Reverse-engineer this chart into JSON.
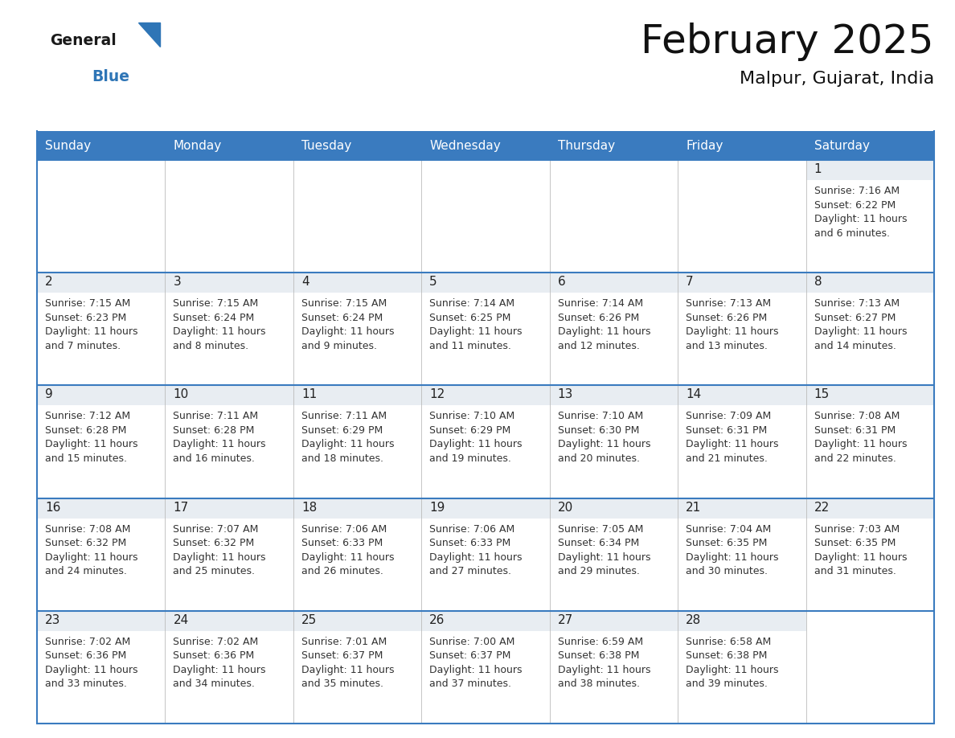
{
  "title": "February 2025",
  "subtitle": "Malpur, Gujarat, India",
  "header_color": "#3a7bbf",
  "header_text_color": "#ffffff",
  "day_num_bg": "#e8edf2",
  "cell_bg_color": "#ffffff",
  "day_number_color": "#222222",
  "text_color": "#333333",
  "border_color": "#3a7bbf",
  "logo_general_color": "#1a1a1a",
  "logo_blue_color": "#2e75b6",
  "logo_triangle_color": "#2e75b6",
  "days_of_week": [
    "Sunday",
    "Monday",
    "Tuesday",
    "Wednesday",
    "Thursday",
    "Friday",
    "Saturday"
  ],
  "calendar": [
    [
      null,
      null,
      null,
      null,
      null,
      null,
      {
        "day": "1",
        "sunrise": "7:16 AM",
        "sunset": "6:22 PM",
        "daylight_line1": "Daylight: 11 hours",
        "daylight_line2": "and 6 minutes."
      }
    ],
    [
      {
        "day": "2",
        "sunrise": "7:15 AM",
        "sunset": "6:23 PM",
        "daylight_line1": "Daylight: 11 hours",
        "daylight_line2": "and 7 minutes."
      },
      {
        "day": "3",
        "sunrise": "7:15 AM",
        "sunset": "6:24 PM",
        "daylight_line1": "Daylight: 11 hours",
        "daylight_line2": "and 8 minutes."
      },
      {
        "day": "4",
        "sunrise": "7:15 AM",
        "sunset": "6:24 PM",
        "daylight_line1": "Daylight: 11 hours",
        "daylight_line2": "and 9 minutes."
      },
      {
        "day": "5",
        "sunrise": "7:14 AM",
        "sunset": "6:25 PM",
        "daylight_line1": "Daylight: 11 hours",
        "daylight_line2": "and 11 minutes."
      },
      {
        "day": "6",
        "sunrise": "7:14 AM",
        "sunset": "6:26 PM",
        "daylight_line1": "Daylight: 11 hours",
        "daylight_line2": "and 12 minutes."
      },
      {
        "day": "7",
        "sunrise": "7:13 AM",
        "sunset": "6:26 PM",
        "daylight_line1": "Daylight: 11 hours",
        "daylight_line2": "and 13 minutes."
      },
      {
        "day": "8",
        "sunrise": "7:13 AM",
        "sunset": "6:27 PM",
        "daylight_line1": "Daylight: 11 hours",
        "daylight_line2": "and 14 minutes."
      }
    ],
    [
      {
        "day": "9",
        "sunrise": "7:12 AM",
        "sunset": "6:28 PM",
        "daylight_line1": "Daylight: 11 hours",
        "daylight_line2": "and 15 minutes."
      },
      {
        "day": "10",
        "sunrise": "7:11 AM",
        "sunset": "6:28 PM",
        "daylight_line1": "Daylight: 11 hours",
        "daylight_line2": "and 16 minutes."
      },
      {
        "day": "11",
        "sunrise": "7:11 AM",
        "sunset": "6:29 PM",
        "daylight_line1": "Daylight: 11 hours",
        "daylight_line2": "and 18 minutes."
      },
      {
        "day": "12",
        "sunrise": "7:10 AM",
        "sunset": "6:29 PM",
        "daylight_line1": "Daylight: 11 hours",
        "daylight_line2": "and 19 minutes."
      },
      {
        "day": "13",
        "sunrise": "7:10 AM",
        "sunset": "6:30 PM",
        "daylight_line1": "Daylight: 11 hours",
        "daylight_line2": "and 20 minutes."
      },
      {
        "day": "14",
        "sunrise": "7:09 AM",
        "sunset": "6:31 PM",
        "daylight_line1": "Daylight: 11 hours",
        "daylight_line2": "and 21 minutes."
      },
      {
        "day": "15",
        "sunrise": "7:08 AM",
        "sunset": "6:31 PM",
        "daylight_line1": "Daylight: 11 hours",
        "daylight_line2": "and 22 minutes."
      }
    ],
    [
      {
        "day": "16",
        "sunrise": "7:08 AM",
        "sunset": "6:32 PM",
        "daylight_line1": "Daylight: 11 hours",
        "daylight_line2": "and 24 minutes."
      },
      {
        "day": "17",
        "sunrise": "7:07 AM",
        "sunset": "6:32 PM",
        "daylight_line1": "Daylight: 11 hours",
        "daylight_line2": "and 25 minutes."
      },
      {
        "day": "18",
        "sunrise": "7:06 AM",
        "sunset": "6:33 PM",
        "daylight_line1": "Daylight: 11 hours",
        "daylight_line2": "and 26 minutes."
      },
      {
        "day": "19",
        "sunrise": "7:06 AM",
        "sunset": "6:33 PM",
        "daylight_line1": "Daylight: 11 hours",
        "daylight_line2": "and 27 minutes."
      },
      {
        "day": "20",
        "sunrise": "7:05 AM",
        "sunset": "6:34 PM",
        "daylight_line1": "Daylight: 11 hours",
        "daylight_line2": "and 29 minutes."
      },
      {
        "day": "21",
        "sunrise": "7:04 AM",
        "sunset": "6:35 PM",
        "daylight_line1": "Daylight: 11 hours",
        "daylight_line2": "and 30 minutes."
      },
      {
        "day": "22",
        "sunrise": "7:03 AM",
        "sunset": "6:35 PM",
        "daylight_line1": "Daylight: 11 hours",
        "daylight_line2": "and 31 minutes."
      }
    ],
    [
      {
        "day": "23",
        "sunrise": "7:02 AM",
        "sunset": "6:36 PM",
        "daylight_line1": "Daylight: 11 hours",
        "daylight_line2": "and 33 minutes."
      },
      {
        "day": "24",
        "sunrise": "7:02 AM",
        "sunset": "6:36 PM",
        "daylight_line1": "Daylight: 11 hours",
        "daylight_line2": "and 34 minutes."
      },
      {
        "day": "25",
        "sunrise": "7:01 AM",
        "sunset": "6:37 PM",
        "daylight_line1": "Daylight: 11 hours",
        "daylight_line2": "and 35 minutes."
      },
      {
        "day": "26",
        "sunrise": "7:00 AM",
        "sunset": "6:37 PM",
        "daylight_line1": "Daylight: 11 hours",
        "daylight_line2": "and 37 minutes."
      },
      {
        "day": "27",
        "sunrise": "6:59 AM",
        "sunset": "6:38 PM",
        "daylight_line1": "Daylight: 11 hours",
        "daylight_line2": "and 38 minutes."
      },
      {
        "day": "28",
        "sunrise": "6:58 AM",
        "sunset": "6:38 PM",
        "daylight_line1": "Daylight: 11 hours",
        "daylight_line2": "and 39 minutes."
      },
      null
    ]
  ]
}
